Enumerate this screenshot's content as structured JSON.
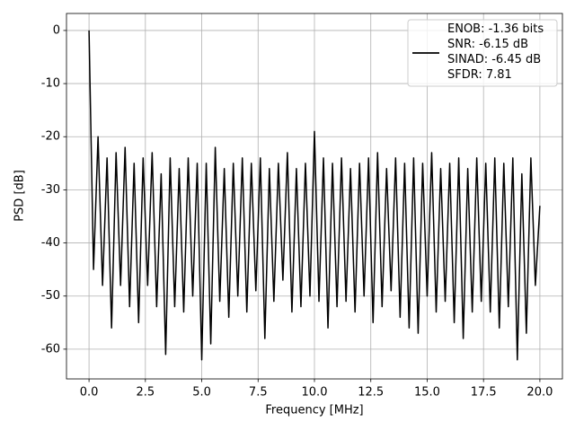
{
  "chart_data": {
    "type": "line",
    "xlabel": "Frequency [MHz]",
    "ylabel": "PSD [dB]",
    "x": [
      0,
      0.2,
      0.4,
      0.6,
      0.8,
      1,
      1.2,
      1.4,
      1.6,
      1.8,
      2,
      2.2,
      2.4,
      2.6,
      2.8,
      3,
      3.2,
      3.4,
      3.6,
      3.8,
      4,
      4.2,
      4.4,
      4.6,
      4.8,
      5,
      5.2,
      5.4,
      5.6,
      5.8,
      6,
      6.2,
      6.4,
      6.6,
      6.8,
      7,
      7.2,
      7.4,
      7.6,
      7.8,
      8,
      8.2,
      8.4,
      8.6,
      8.8,
      9,
      9.2,
      9.4,
      9.6,
      9.8,
      10,
      10.2,
      10.4,
      10.6,
      10.8,
      11,
      11.2,
      11.4,
      11.6,
      11.8,
      12,
      12.2,
      12.4,
      12.6,
      12.8,
      13,
      13.2,
      13.4,
      13.6,
      13.8,
      14,
      14.2,
      14.4,
      14.6,
      14.8,
      15,
      15.2,
      15.4,
      15.6,
      15.8,
      16,
      16.2,
      16.4,
      16.6,
      16.8,
      17,
      17.2,
      17.4,
      17.6,
      17.8,
      18,
      18.2,
      18.4,
      18.6,
      18.8,
      19,
      19.2,
      19.4,
      19.6,
      19.8,
      20
    ],
    "series": [
      {
        "name": "ENOB: -1.36 bits\nSNR: -6.15 dB\nSINAD: -6.45 dB\nSFDR: 7.81",
        "color": "#000000",
        "values": [
          0,
          -45,
          -20,
          -48,
          -24,
          -56,
          -23,
          -48,
          -22,
          -52,
          -25,
          -55,
          -24,
          -48,
          -23,
          -52,
          -27,
          -61,
          -24,
          -52,
          -26,
          -53,
          -24,
          -50,
          -25,
          -62,
          -25,
          -59,
          -22,
          -51,
          -26,
          -54,
          -25,
          -50,
          -24,
          -53,
          -25,
          -49,
          -24,
          -58,
          -26,
          -51,
          -25,
          -47,
          -23,
          -53,
          -26,
          -52,
          -25,
          -50,
          -19,
          -51,
          -24,
          -56,
          -25,
          -52,
          -24,
          -51,
          -26,
          -53,
          -25,
          -50,
          -24,
          -55,
          -23,
          -52,
          -26,
          -49,
          -24,
          -54,
          -25,
          -56,
          -24,
          -57,
          -25,
          -50,
          -23,
          -53,
          -26,
          -51,
          -25,
          -55,
          -24,
          -58,
          -26,
          -53,
          -24,
          -51,
          -25,
          -53,
          -24,
          -56,
          -25,
          -52,
          -24,
          -62,
          -27,
          -57,
          -24,
          -48,
          -33
        ]
      }
    ],
    "xlim": [
      -1,
      21
    ],
    "ylim": [
      -65.6,
      3.2
    ],
    "xticks": [
      {
        "value": 0,
        "label": "0.0"
      },
      2.5,
      {
        "value": 5,
        "label": "5.0"
      },
      7.5,
      {
        "value": 10,
        "label": "10.0"
      },
      12.5,
      {
        "value": 15,
        "label": "15.0"
      },
      17.5,
      {
        "value": 20,
        "label": "20.0"
      }
    ],
    "yticks": [
      0,
      -10,
      -20,
      -30,
      -40,
      -50,
      -60
    ],
    "grid": true,
    "legend": "upper right"
  }
}
